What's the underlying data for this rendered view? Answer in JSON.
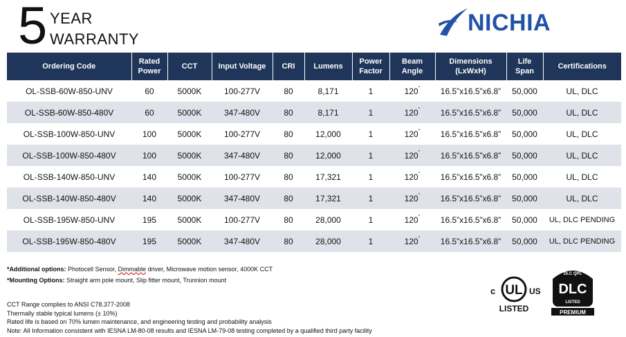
{
  "warranty": {
    "digit": "5",
    "line1": "YEAR",
    "line2": "WARRANTY"
  },
  "brand": {
    "name": "NICHIA",
    "color": "#2152a8"
  },
  "colors": {
    "header_bg": "#1f3559",
    "alt_row_bg": "#dfe2e8"
  },
  "table": {
    "headers": [
      {
        "lines": [
          "Ordering  Code"
        ]
      },
      {
        "lines": [
          "Rated",
          "Power"
        ]
      },
      {
        "lines": [
          "CCT"
        ]
      },
      {
        "lines": [
          "Input Voltage"
        ]
      },
      {
        "lines": [
          "CRI"
        ]
      },
      {
        "lines": [
          "Lumens"
        ]
      },
      {
        "lines": [
          "Power",
          "Factor"
        ]
      },
      {
        "lines": [
          "Beam",
          "Angle"
        ]
      },
      {
        "lines": [
          "Dimensions",
          "(LxWxH)"
        ]
      },
      {
        "lines": [
          "Life",
          "Span"
        ]
      },
      {
        "lines": [
          "Certifications"
        ]
      }
    ],
    "rows": [
      [
        "OL-SSB-60W-850-UNV",
        "60",
        "5000K",
        "100-277V",
        "80",
        "8,171",
        "1",
        "120",
        "16.5”x16.5”x6.8”",
        "50,000",
        "UL, DLC"
      ],
      [
        "OL-SSB-60W-850-480V",
        "60",
        "5000K",
        "347-480V",
        "80",
        "8,171",
        "1",
        "120",
        "16.5”x16.5”x6.8”",
        "50,000",
        "UL, DLC"
      ],
      [
        "OL-SSB-100W-850-UNV",
        "100",
        "5000K",
        "100-277V",
        "80",
        "12,000",
        "1",
        "120",
        "16.5”x16.5”x6.8”",
        "50,000",
        "UL, DLC"
      ],
      [
        "OL-SSB-100W-850-480V",
        "100",
        "5000K",
        "347-480V",
        "80",
        "12,000",
        "1",
        "120",
        "16.5”x16.5”x6.8”",
        "50,000",
        "UL, DLC"
      ],
      [
        "OL-SSB-140W-850-UNV",
        "140",
        "5000K",
        "100-277V",
        "80",
        "17,321",
        "1",
        "120",
        "16.5”x16.5”x6.8”",
        "50,000",
        "UL, DLC"
      ],
      [
        "OL-SSB-140W-850-480V",
        "140",
        "5000K",
        "347-480V",
        "80",
        "17,321",
        "1",
        "120",
        "16.5”x16.5”x6.8”",
        "50,000",
        "UL, DLC"
      ],
      [
        "OL-SSB-195W-850-UNV",
        "195",
        "5000K",
        "100-277V",
        "80",
        "28,000",
        "1",
        "120",
        "16.5”x16.5”x6.8”",
        "50,000",
        "UL, DLC PENDING"
      ],
      [
        "OL-SSB-195W-850-480V",
        "195",
        "5000K",
        "347-480V",
        "80",
        "28,000",
        "1",
        "120",
        "16.5”x16.5”x6.8”",
        "50,000",
        "UL, DLC PENDING"
      ]
    ],
    "degree_symbol": "°"
  },
  "options": {
    "additional_label": "*Additional options:",
    "additional_pre": " Photocell Sensor, ",
    "additional_flag": "Dimmable",
    "additional_post": " driver, Microwave motion sensor, 4000K CCT",
    "mounting_label": "*Mounting Options:",
    "mounting_text": " Straight arm pole mount, Slip fitter mount, Trunnion mount"
  },
  "notes": [
    "CCT Range complies to ANSI C78.377-2008",
    "Thermally stable typical lumens (± 10%)",
    "Rated life is based on 70% lumen maintenance, and engineering testing and probability analysis",
    "Note: All Information consistent with IESNA LM-80-08 results and IESNA LM-79-08 testing completed by a qualified third party facility"
  ],
  "logos": {
    "ul": {
      "c": "c",
      "mark": "UL",
      "us": "US",
      "listed": "LISTED"
    },
    "dlc": {
      "top": "DLC QPL",
      "mark": "DLC",
      "listed": "LISTED",
      "tier": "PREMIUM"
    }
  }
}
